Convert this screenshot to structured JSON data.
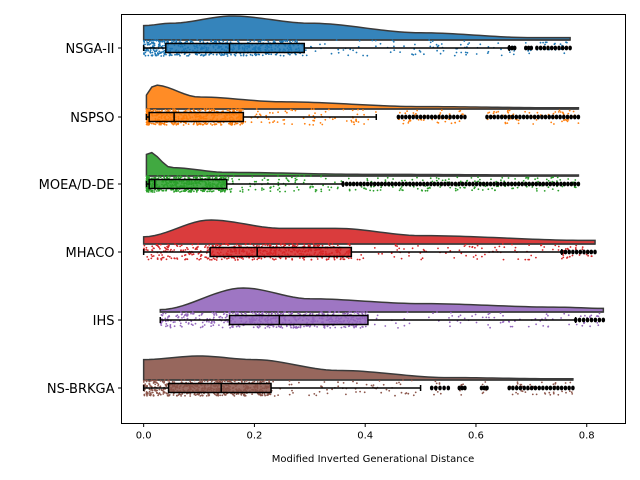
{
  "chart_data": {
    "type": "raincloud",
    "xlabel": "Modified Inverted Generational Distance",
    "xlim": [
      -0.04,
      0.87
    ],
    "xticks": [
      "0.0",
      "0.2",
      "0.4",
      "0.6",
      "0.8"
    ],
    "xtick_values": [
      0.0,
      0.2,
      0.4,
      0.6,
      0.8
    ],
    "categories": [
      "NSGA-II",
      "NSPSO",
      "MOEA/D-DE",
      "MHACO",
      "IHS",
      "NS-BRKGA"
    ],
    "series": [
      {
        "name": "NSGA-II",
        "color": "#1f77b4",
        "min": 0.0,
        "q1": 0.04,
        "median": 0.155,
        "q3": 0.29,
        "whisker_high": 0.66,
        "max": 0.77,
        "outlier_ranges": [
          [
            0.66,
            0.67
          ],
          [
            0.69,
            0.7
          ],
          [
            0.71,
            0.77
          ]
        ],
        "density_peaks": [
          [
            0.0,
            0.6
          ],
          [
            0.05,
            0.7
          ],
          [
            0.16,
            1.0
          ],
          [
            0.3,
            0.7
          ],
          [
            0.5,
            0.3
          ],
          [
            0.7,
            0.1
          ]
        ]
      },
      {
        "name": "NSPSO",
        "color": "#ff7f0e",
        "min": 0.005,
        "q1": 0.01,
        "median": 0.055,
        "q3": 0.18,
        "whisker_high": 0.42,
        "max": 0.785,
        "outlier_ranges": [
          [
            0.46,
            0.58
          ],
          [
            0.62,
            0.785
          ]
        ],
        "density_peaks": [
          [
            0.0,
            0.5
          ],
          [
            0.02,
            1.0
          ],
          [
            0.1,
            0.5
          ],
          [
            0.25,
            0.3
          ],
          [
            0.5,
            0.1
          ],
          [
            0.75,
            0.05
          ]
        ]
      },
      {
        "name": "MOEA/D-DE",
        "color": "#2ca02c",
        "min": 0.005,
        "q1": 0.01,
        "median": 0.02,
        "q3": 0.15,
        "whisker_high": 0.36,
        "max": 0.785,
        "outlier_ranges": [
          [
            0.36,
            0.785
          ]
        ],
        "density_peaks": [
          [
            0.0,
            0.8
          ],
          [
            0.01,
            1.0
          ],
          [
            0.05,
            0.35
          ],
          [
            0.15,
            0.15
          ],
          [
            0.4,
            0.07
          ],
          [
            0.75,
            0.04
          ]
        ]
      },
      {
        "name": "MHACO",
        "color": "#d62728",
        "min": 0.0,
        "q1": 0.12,
        "median": 0.205,
        "q3": 0.375,
        "whisker_high": 0.755,
        "max": 0.815,
        "outlier_ranges": [
          [
            0.755,
            0.815
          ]
        ],
        "density_peaks": [
          [
            0.0,
            0.3
          ],
          [
            0.12,
            1.0
          ],
          [
            0.25,
            0.65
          ],
          [
            0.35,
            0.65
          ],
          [
            0.5,
            0.35
          ],
          [
            0.8,
            0.15
          ]
        ]
      },
      {
        "name": "IHS",
        "color": "#9467bd",
        "min": 0.03,
        "q1": 0.155,
        "median": 0.245,
        "q3": 0.405,
        "whisker_high": 0.78,
        "max": 0.83,
        "outlier_ranges": [
          [
            0.78,
            0.83
          ]
        ],
        "density_peaks": [
          [
            0.03,
            0.1
          ],
          [
            0.18,
            1.0
          ],
          [
            0.3,
            0.55
          ],
          [
            0.5,
            0.35
          ],
          [
            0.75,
            0.2
          ],
          [
            0.83,
            0.15
          ]
        ]
      },
      {
        "name": "NS-BRKGA",
        "color": "#8c564b",
        "min": 0.0,
        "q1": 0.045,
        "median": 0.14,
        "q3": 0.23,
        "whisker_high": 0.5,
        "max": 0.775,
        "outlier_ranges": [
          [
            0.52,
            0.55
          ],
          [
            0.57,
            0.58
          ],
          [
            0.61,
            0.62
          ],
          [
            0.66,
            0.775
          ]
        ],
        "density_peaks": [
          [
            0.0,
            0.85
          ],
          [
            0.1,
            1.0
          ],
          [
            0.2,
            0.85
          ],
          [
            0.35,
            0.4
          ],
          [
            0.55,
            0.1
          ],
          [
            0.75,
            0.05
          ]
        ]
      }
    ]
  }
}
